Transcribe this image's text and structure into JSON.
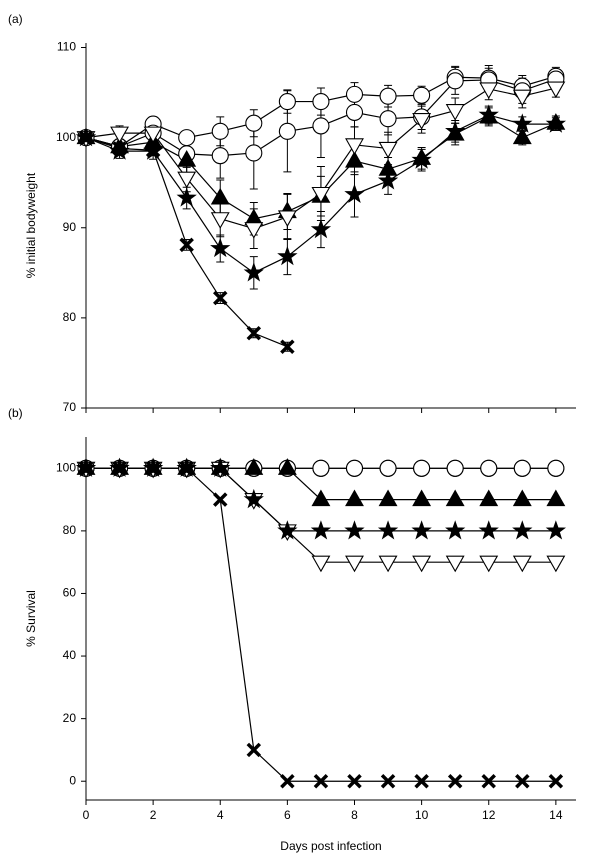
{
  "chart_data": [
    {
      "type": "line",
      "title": "(a)",
      "ylabel": "% initial bodyweight",
      "x": [
        0,
        1,
        2,
        3,
        4,
        5,
        6,
        7,
        8,
        9,
        10,
        11,
        12,
        13,
        14
      ],
      "xlim": [
        0,
        14.6
      ],
      "xticks": [
        0,
        2,
        4,
        6,
        8,
        10,
        12,
        14
      ],
      "ylim": [
        70,
        110.5
      ],
      "yticks": [
        70,
        80,
        90,
        100,
        110
      ],
      "series": [
        {
          "marker": "circle",
          "color": "#000000",
          "values": [
            100,
            99,
            101.5,
            100,
            100.7,
            101.6,
            104,
            104,
            104.8,
            104.6,
            104.7,
            106.7,
            106.6,
            105.7,
            106.8
          ],
          "errors": [
            0.5,
            0.8,
            0.8,
            0.7,
            1.6,
            1.5,
            1.3,
            1.5,
            1.3,
            1.2,
            1.0,
            1.2,
            1.4,
            1.2,
            1.0
          ]
        },
        {
          "marker": "circle",
          "color": "#000000",
          "values": [
            100,
            99,
            100.5,
            98.2,
            98,
            98.3,
            100.7,
            101.3,
            102.8,
            102.1,
            102.3,
            106.3,
            106.4,
            105.2,
            106.5
          ],
          "errors": [
            0.5,
            0.8,
            0.9,
            1.5,
            2.5,
            4.0,
            4.5,
            3.5,
            1.6,
            1.8,
            1.4,
            1.5,
            1.3,
            1.4,
            1.1
          ]
        },
        {
          "marker": "triangle-up",
          "color": "#000000",
          "values": [
            100,
            99,
            99.5,
            97.5,
            93.3,
            91,
            91.8,
            93.5,
            97.4,
            96.5,
            97.7,
            100.4,
            102.3,
            100,
            101.6
          ],
          "errors": [
            0.5,
            0.8,
            0.9,
            1.5,
            2.0,
            1.8,
            2.0,
            2.2,
            1.5,
            1.3,
            1.2,
            1.2,
            1.0,
            0.8,
            0.8
          ]
        },
        {
          "marker": "triangle-down",
          "color": "#000000",
          "values": [
            100,
            100.5,
            100.5,
            95.5,
            91,
            89.9,
            91.2,
            93.8,
            99.2,
            98.8,
            102,
            103,
            105.4,
            104.6,
            105.5
          ],
          "errors": [
            0.5,
            0.8,
            0.9,
            1.5,
            2.0,
            2.2,
            2.5,
            3.0,
            2.0,
            1.8,
            1.5,
            1.4,
            1.2,
            1.3,
            1.0
          ]
        },
        {
          "marker": "star",
          "color": "#000000",
          "values": [
            100,
            98.5,
            98.5,
            93.3,
            87.7,
            85,
            86.8,
            89.8,
            93.7,
            95.2,
            97.5,
            100.7,
            102.5,
            101.5,
            101.5
          ],
          "errors": [
            0.5,
            0.8,
            0.9,
            1.2,
            1.5,
            1.8,
            2.0,
            2.0,
            2.5,
            1.5,
            1.2,
            1.2,
            1.0,
            0.8,
            0.7
          ]
        },
        {
          "marker": "x",
          "color": "#000000",
          "values": [
            100,
            98.8,
            98.6,
            88.1,
            82.2,
            78.3,
            76.8,
            null,
            null,
            null,
            null,
            null,
            null,
            null,
            null
          ],
          "errors": [
            0.5,
            0.6,
            0.6,
            0.6,
            0.6,
            0.5,
            0.5,
            null,
            null,
            null,
            null,
            null,
            null,
            null,
            null
          ]
        }
      ]
    },
    {
      "type": "line",
      "title": "(b)",
      "ylabel": "% Survival",
      "xlabel": "Days post infection",
      "x": [
        0,
        1,
        2,
        3,
        4,
        5,
        6,
        7,
        8,
        9,
        10,
        11,
        12,
        13,
        14
      ],
      "xlim": [
        0,
        14.6
      ],
      "xticks": [
        0,
        2,
        4,
        6,
        8,
        10,
        12,
        14
      ],
      "ylim": [
        -6,
        110
      ],
      "yticks": [
        0,
        20,
        40,
        60,
        80,
        100
      ],
      "series": [
        {
          "marker": "circle-plus",
          "color": "#000000",
          "values": [
            100,
            100,
            100,
            100,
            100,
            100,
            100,
            100,
            100,
            100,
            100,
            100,
            100,
            100,
            100
          ]
        },
        {
          "marker": "circle",
          "color": "#000000",
          "values": [
            100,
            100,
            100,
            100,
            100,
            100,
            100,
            100,
            100,
            100,
            100,
            100,
            100,
            100,
            100
          ]
        },
        {
          "marker": "triangle-up",
          "color": "#000000",
          "values": [
            100,
            100,
            100,
            100,
            100,
            100,
            100,
            90,
            90,
            90,
            90,
            90,
            90,
            90,
            90
          ]
        },
        {
          "marker": "triangle-down",
          "color": "#000000",
          "values": [
            100,
            100,
            100,
            100,
            100,
            90,
            80,
            70,
            70,
            70,
            70,
            70,
            70,
            70,
            70
          ]
        },
        {
          "marker": "star",
          "color": "#000000",
          "values": [
            100,
            100,
            100,
            100,
            100,
            90,
            80,
            80,
            80,
            80,
            80,
            80,
            80,
            80,
            80
          ]
        },
        {
          "marker": "x",
          "color": "#000000",
          "values": [
            100,
            100,
            100,
            100,
            90,
            10,
            0,
            0,
            0,
            0,
            0,
            0,
            0,
            0,
            0
          ]
        }
      ]
    }
  ]
}
